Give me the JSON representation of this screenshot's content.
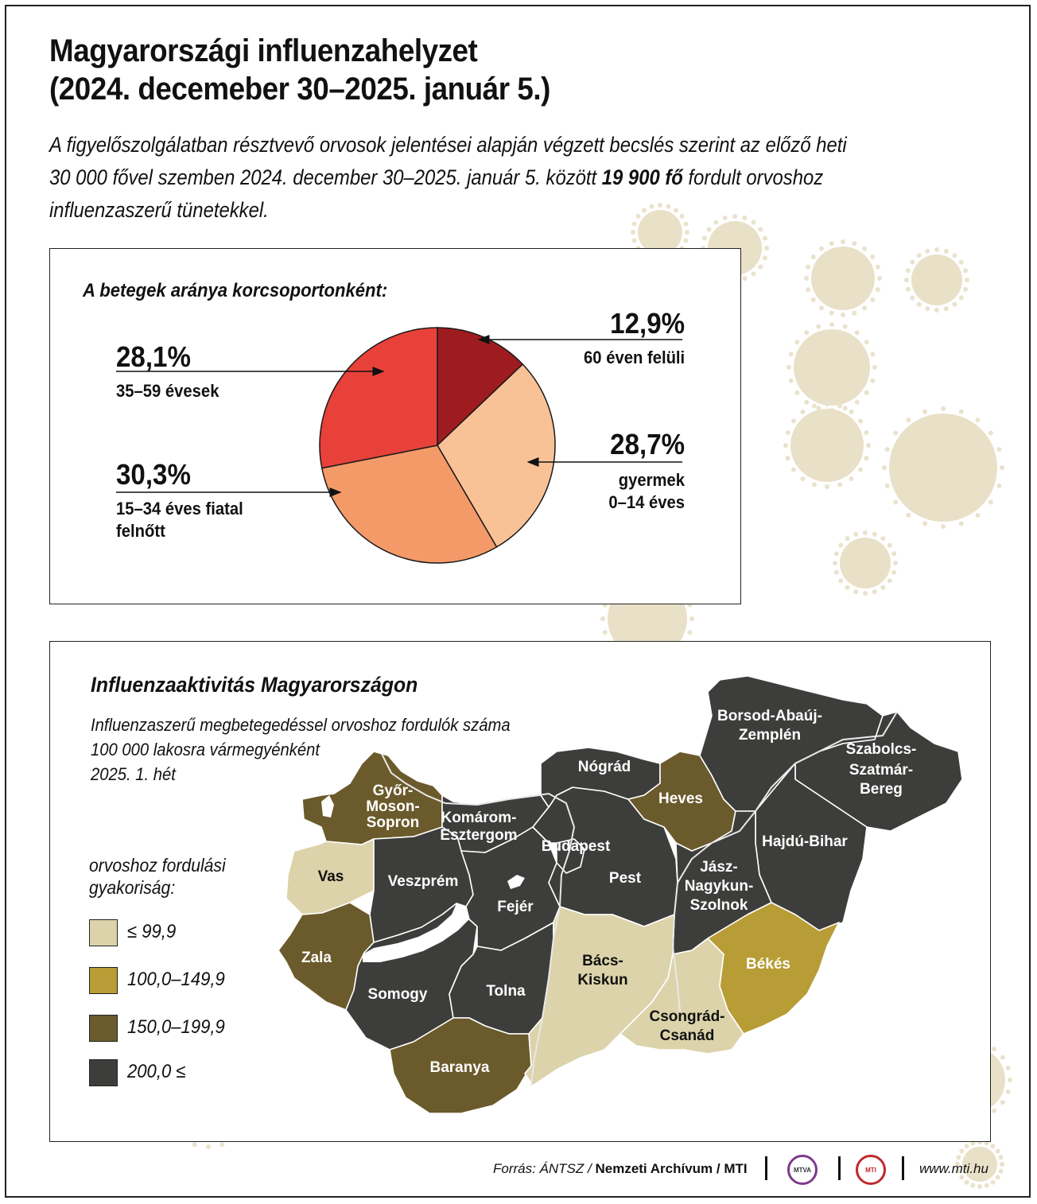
{
  "title_line1": "Magyarországi influenzahelyzet",
  "title_line2": "(2024. decemeber 30–2025. január 5.)",
  "lead_part1": "A figyelőszolgálatban résztvevő orvosok jelentései alapján végzett becslés szerint az előző heti",
  "lead_part2": "30 000 fővel szemben 2024. december 30–2025. január 5. között ",
  "lead_bold": "19 900 fő",
  "lead_part3": " fordult orvoshoz",
  "lead_part4": "influenzaszerű tünetekkel.",
  "chart_data": [
    {
      "type": "pie",
      "title": "A betegek aránya korcsoportonként:",
      "slices": [
        {
          "label": "60 éven felüli",
          "value": 12.9,
          "value_label": "12,9%",
          "color": "#9e1c20"
        },
        {
          "label": "gyermek 0–14 éves",
          "value": 28.7,
          "value_label": "28,7%",
          "color": "#f9c296"
        },
        {
          "label": "15–34 éves fiatal felnőtt",
          "value": 30.3,
          "value_label": "30,3%",
          "color": "#f49a68"
        },
        {
          "label": "35–59 évesek",
          "value": 28.1,
          "value_label": "28,1%",
          "color": "#e8413a"
        }
      ]
    },
    {
      "type": "choropleth",
      "title": "Influenzaaktivitás Magyarországon",
      "subtitle": [
        "Influenzaszerű megbetegedéssel orvoshoz fordulók száma",
        "100 000 lakosra vármegyénként",
        "2025. 1. hét"
      ],
      "legend_title": [
        "orvoshoz fordulási",
        "gyakoriság:"
      ],
      "classes": [
        {
          "label": "≤ 99,9",
          "color": "#dcd3aa"
        },
        {
          "label": "100,0–149,9",
          "color": "#b89c35"
        },
        {
          "label": "150,0–199,9",
          "color": "#6b5a2b"
        },
        {
          "label": "200,0 ≤",
          "color": "#3d3d3b"
        }
      ],
      "regions": [
        {
          "name": "Győr-Moson-Sopron",
          "class": 2
        },
        {
          "name": "Komárom-Esztergom",
          "class": 3
        },
        {
          "name": "Vas",
          "class": 0
        },
        {
          "name": "Veszprém",
          "class": 3
        },
        {
          "name": "Zala",
          "class": 2
        },
        {
          "name": "Somogy",
          "class": 3
        },
        {
          "name": "Fejér",
          "class": 3
        },
        {
          "name": "Tolna",
          "class": 3
        },
        {
          "name": "Baranya",
          "class": 2
        },
        {
          "name": "Budapest",
          "class": 3
        },
        {
          "name": "Pest",
          "class": 3
        },
        {
          "name": "Nógrád",
          "class": 3
        },
        {
          "name": "Heves",
          "class": 2
        },
        {
          "name": "Borsod-Abaúj-Zemplén",
          "class": 3
        },
        {
          "name": "Szabolcs-Szatmár-Bereg",
          "class": 3
        },
        {
          "name": "Hajdú-Bihar",
          "class": 3
        },
        {
          "name": "Jász-Nagykun-Szolnok",
          "class": 3
        },
        {
          "name": "Bács-Kiskun",
          "class": 0
        },
        {
          "name": "Csongrád-Csanád",
          "class": 0
        },
        {
          "name": "Békés",
          "class": 1
        }
      ]
    }
  ],
  "map_labels": {
    "gyor": [
      "Győr-",
      "Moson-",
      "Sopron"
    ],
    "komarom": [
      "Komárom-",
      "Esztergom"
    ],
    "vas": "Vas",
    "veszprem": "Veszprém",
    "zala": "Zala",
    "somogy": "Somogy",
    "fejer": "Fejér",
    "tolna": "Tolna",
    "baranya": "Baranya",
    "budapest": "Budapest",
    "pest": "Pest",
    "nograd": "Nógrád",
    "heves": "Heves",
    "borsod": [
      "Borsod-Abaúj-",
      "Zemplén"
    ],
    "szabolcs": [
      "Szabolcs-",
      "Szatmár-",
      "Bereg"
    ],
    "hajdu": "Hajdú-Bihar",
    "jasz": [
      "Jász-",
      "Nagykun-",
      "Szolnok"
    ],
    "bacs": [
      "Bács-",
      "Kiskun"
    ],
    "csongrad": [
      "Csongrád-",
      "Csanád"
    ],
    "bekes": "Békés"
  },
  "footer": {
    "source_italic": "Forrás: ÁNTSZ / ",
    "source_bold": "Nemzeti Archívum / MTI",
    "logo1": "MTVA",
    "logo2": "MTI",
    "url": "www.mti.hu"
  }
}
